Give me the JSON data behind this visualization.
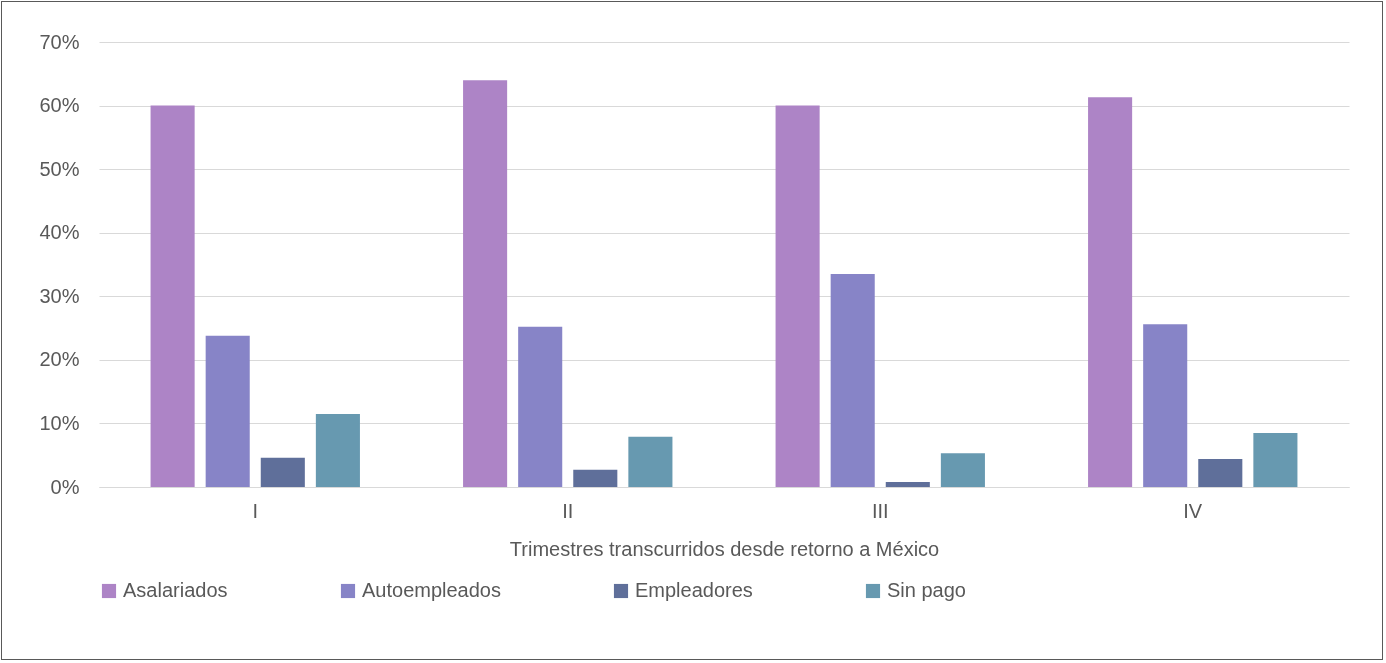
{
  "chart_data": {
    "type": "bar",
    "xlabel": "Trimestres transcurridos desde retorno a México",
    "categories": [
      "I",
      "II",
      "III",
      "IV"
    ],
    "series": [
      {
        "name": "Asalariados",
        "color": "#ad84c6",
        "values": [
          60.0,
          64.0,
          60.0,
          61.3
        ]
      },
      {
        "name": "Autoempleados",
        "color": "#8784c7",
        "values": [
          23.8,
          25.2,
          33.5,
          25.6
        ]
      },
      {
        "name": "Empleadores",
        "color": "#5f6f9a",
        "values": [
          4.6,
          2.7,
          0.8,
          4.4
        ]
      },
      {
        "name": "Sin pago",
        "color": "#6799b0",
        "values": [
          11.5,
          7.9,
          5.3,
          8.5
        ]
      }
    ],
    "ylim": [
      0,
      70
    ],
    "yticks": [
      {
        "value": 0,
        "label": "0%"
      },
      {
        "value": 10,
        "label": "10%"
      },
      {
        "value": 20,
        "label": "20%"
      },
      {
        "value": 30,
        "label": "30%"
      },
      {
        "value": 40,
        "label": "40%"
      },
      {
        "value": 50,
        "label": "50%"
      },
      {
        "value": 60,
        "label": "60%"
      },
      {
        "value": 70,
        "label": "70%"
      }
    ],
    "grid": "y",
    "legend": "bottom"
  }
}
